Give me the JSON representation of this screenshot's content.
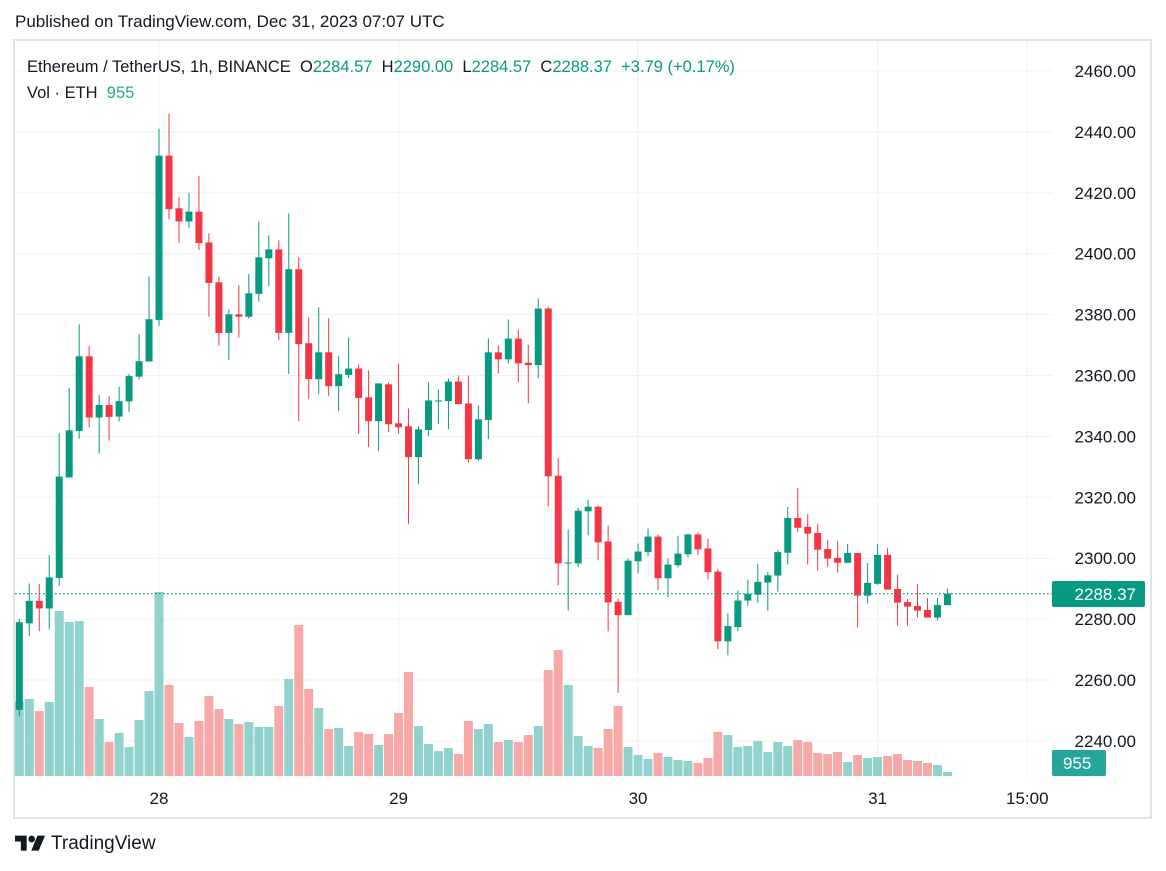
{
  "header": {
    "published": "Published on TradingView.com, Dec 31, 2023 07:07 UTC"
  },
  "legend": {
    "symbol": "Ethereum / TetherUS, 1h, BINANCE",
    "o_label": "O",
    "o_value": "2284.57",
    "h_label": "H",
    "h_value": "2290.00",
    "l_label": "L",
    "l_value": "2284.57",
    "c_label": "C",
    "c_value": "2288.37",
    "change": "+3.79 (+0.17%)",
    "vol_label": "Vol · ETH",
    "vol_value": "955"
  },
  "colors": {
    "up": "#089981",
    "down": "#f23645",
    "vol_up": "#92d2cc",
    "vol_down": "#f7a9a7",
    "last_price_tag": "#089981",
    "vol_tag": "#26a69a",
    "grid": "#f0f1f4",
    "frame": "#e0e3eb"
  },
  "footer": {
    "brand": "TradingView"
  },
  "chart_data": {
    "type": "candlestick",
    "title": "Ethereum / TetherUS, 1h, BINANCE",
    "interval": "1h",
    "ylim": [
      2229,
      2470
    ],
    "y_ticks": [
      "2460.00",
      "2440.00",
      "2420.00",
      "2400.00",
      "2380.00",
      "2360.00",
      "2340.00",
      "2320.00",
      "2300.00",
      "2280.00",
      "2260.00",
      "2240.00"
    ],
    "x_ticks": [
      {
        "label": "28",
        "index": 14
      },
      {
        "label": "29",
        "index": 38
      },
      {
        "label": "30",
        "index": 62
      },
      {
        "label": "31",
        "index": 86
      },
      {
        "label": "15:00",
        "index": 101
      }
    ],
    "last_price": "2288.37",
    "last_volume": "955",
    "grid": true,
    "columns": [
      "open",
      "high",
      "low",
      "close",
      "volume"
    ],
    "candles": [
      [
        2250.2,
        2280,
        2248,
        2279,
        17840
      ],
      [
        2278.6,
        2291.7,
        2274.5,
        2286,
        18480
      ],
      [
        2286,
        2291.5,
        2276,
        2283.5,
        15600
      ],
      [
        2283.5,
        2301,
        2276.6,
        2293.7,
        17760
      ],
      [
        2293.5,
        2341,
        2291,
        2326.8,
        39600
      ],
      [
        2326.5,
        2356,
        2326.5,
        2342,
        36960
      ],
      [
        2341.8,
        2376.8,
        2339.3,
        2366.3,
        37200
      ],
      [
        2366.3,
        2369.6,
        2343,
        2346.2,
        21360
      ],
      [
        2346.2,
        2353.6,
        2334.4,
        2350.3,
        13680
      ],
      [
        2350.3,
        2353.2,
        2338.6,
        2346.4,
        8160
      ],
      [
        2346.5,
        2356.3,
        2344.9,
        2351.6,
        10320
      ],
      [
        2351.5,
        2360.5,
        2348,
        2359.8,
        6960
      ],
      [
        2359.6,
        2373.6,
        2358.6,
        2364.7,
        13440
      ],
      [
        2364.6,
        2392.5,
        2364.6,
        2378.5,
        20400
      ],
      [
        2378.2,
        2441,
        2376.3,
        2432.2,
        44160
      ],
      [
        2432.2,
        2446,
        2411.3,
        2414.6,
        21840
      ],
      [
        2414.9,
        2418.5,
        2403.5,
        2410.6,
        12720
      ],
      [
        2410.6,
        2420,
        2408.4,
        2413.8,
        9360
      ],
      [
        2413.8,
        2425.6,
        2401.2,
        2403.5,
        13200
      ],
      [
        2403.7,
        2406.7,
        2379.3,
        2390.4,
        19200
      ],
      [
        2390.6,
        2392.5,
        2369.7,
        2374,
        16080
      ],
      [
        2374,
        2381.8,
        2365.1,
        2380.1,
        13680
      ],
      [
        2380.1,
        2389.6,
        2372.4,
        2379.3,
        12480
      ],
      [
        2379.3,
        2393.3,
        2378.6,
        2387,
        12960
      ],
      [
        2386.8,
        2410.5,
        2384.2,
        2398.8,
        11760
      ],
      [
        2398.5,
        2406,
        2389.4,
        2401.4,
        11760
      ],
      [
        2401.4,
        2404.4,
        2371.6,
        2374,
        16800
      ],
      [
        2374,
        2413.2,
        2360.5,
        2394.9,
        23280
      ],
      [
        2394.9,
        2398.8,
        2345,
        2370.3,
        36240
      ],
      [
        2370.6,
        2379.1,
        2352.3,
        2358.8,
        20880
      ],
      [
        2358.8,
        2382.4,
        2353.9,
        2367.6,
        16320
      ],
      [
        2367.6,
        2378.8,
        2353.3,
        2356.5,
        11280
      ],
      [
        2356.5,
        2366.3,
        2348.3,
        2360.4,
        11520
      ],
      [
        2360.2,
        2372.5,
        2359.2,
        2362.3,
        7200
      ],
      [
        2362.3,
        2363.7,
        2340.8,
        2352.6,
        10560
      ],
      [
        2352.8,
        2361.7,
        2336.5,
        2345,
        10080
      ],
      [
        2345,
        2357.4,
        2335.2,
        2357.4,
        7440
      ],
      [
        2357.1,
        2357.7,
        2341.4,
        2344,
        10080
      ],
      [
        2344.3,
        2363.9,
        2340.8,
        2343,
        15120
      ],
      [
        2343.3,
        2349.2,
        2311.2,
        2333.2,
        24960
      ],
      [
        2333.2,
        2343.3,
        2324.4,
        2342.3,
        12000
      ],
      [
        2342.1,
        2357.7,
        2340.1,
        2351.8,
        7680
      ],
      [
        2351.5,
        2355.4,
        2344,
        2351.8,
        6000
      ],
      [
        2351.6,
        2359,
        2342.4,
        2358,
        6720
      ],
      [
        2358,
        2360,
        2350.6,
        2350.6,
        5280
      ],
      [
        2350.8,
        2360,
        2331.3,
        2332.5,
        13200
      ],
      [
        2332.5,
        2350.2,
        2331.9,
        2345.6,
        11280
      ],
      [
        2345.4,
        2372.2,
        2339.1,
        2367.6,
        12480
      ],
      [
        2367.6,
        2369.9,
        2360.7,
        2365.3,
        8160
      ],
      [
        2365.3,
        2378.4,
        2363.9,
        2372.1,
        8640
      ],
      [
        2372.1,
        2375.1,
        2357.8,
        2364,
        8160
      ],
      [
        2364.2,
        2370.1,
        2350.9,
        2363.4,
        9840
      ],
      [
        2363.4,
        2385.3,
        2359.1,
        2382,
        12000
      ],
      [
        2382,
        2382.6,
        2317,
        2326.9,
        25440
      ],
      [
        2327.1,
        2333,
        2291.1,
        2298.3,
        30240
      ],
      [
        2298.3,
        2309.4,
        2282.9,
        2298.6,
        21840
      ],
      [
        2298.3,
        2316.5,
        2297,
        2315.6,
        9600
      ],
      [
        2315.4,
        2319.2,
        2307.5,
        2316.9,
        7200
      ],
      [
        2316.9,
        2317.3,
        2299.3,
        2305.2,
        6720
      ],
      [
        2305.5,
        2310.7,
        2276,
        2285.5,
        11280
      ],
      [
        2285.7,
        2286.7,
        2255.8,
        2281.3,
        16800
      ],
      [
        2281.3,
        2299.9,
        2281.3,
        2299.2,
        6960
      ],
      [
        2299,
        2304.8,
        2295,
        2302.2,
        5040
      ],
      [
        2302,
        2309.7,
        2300.6,
        2307.1,
        4080
      ],
      [
        2307.1,
        2307.7,
        2289.5,
        2293.4,
        5520
      ],
      [
        2293.4,
        2300,
        2287.2,
        2297.9,
        4560
      ],
      [
        2297.7,
        2307.4,
        2297,
        2301.5,
        3840
      ],
      [
        2301.3,
        2308.1,
        2300.3,
        2307.8,
        3600
      ],
      [
        2307.8,
        2308.4,
        2301,
        2302.9,
        3120
      ],
      [
        2303.2,
        2306.4,
        2293.1,
        2295.4,
        4320
      ],
      [
        2295.6,
        2296.6,
        2270.1,
        2272.7,
        10560
      ],
      [
        2272.7,
        2281.9,
        2268.1,
        2277.7,
        9840
      ],
      [
        2277.4,
        2289.4,
        2276,
        2286.1,
        6960
      ],
      [
        2286.1,
        2292.9,
        2284.4,
        2288.3,
        7200
      ],
      [
        2288,
        2298.1,
        2285.4,
        2292.2,
        8400
      ],
      [
        2292,
        2295.5,
        2282.8,
        2294.4,
        5760
      ],
      [
        2294.3,
        2302.7,
        2289,
        2302,
        8160
      ],
      [
        2301.8,
        2316.8,
        2297.9,
        2313.2,
        7200
      ],
      [
        2313.2,
        2323.1,
        2308.7,
        2310,
        8640
      ],
      [
        2310.3,
        2314.5,
        2297.9,
        2308.1,
        8160
      ],
      [
        2308.3,
        2311.2,
        2295.9,
        2302.8,
        5520
      ],
      [
        2303,
        2306,
        2297.2,
        2299.9,
        5280
      ],
      [
        2300.1,
        2305.7,
        2295.3,
        2298.5,
        5760
      ],
      [
        2298.5,
        2304.7,
        2298.5,
        2301.7,
        3360
      ],
      [
        2301.7,
        2301.7,
        2277.2,
        2287.7,
        5040
      ],
      [
        2287.7,
        2298.4,
        2285.1,
        2291.9,
        4320
      ],
      [
        2291.6,
        2304.7,
        2291.3,
        2301.1,
        4560
      ],
      [
        2301.1,
        2303.4,
        2289.7,
        2289.7,
        4800
      ],
      [
        2289.9,
        2294.5,
        2277.9,
        2285.4,
        5280
      ],
      [
        2285.6,
        2286.6,
        2277.9,
        2284.1,
        3840
      ],
      [
        2284.3,
        2291.5,
        2280.5,
        2282.8,
        3600
      ],
      [
        2283,
        2286.9,
        2280.5,
        2280.5,
        3120
      ],
      [
        2280.5,
        2286.9,
        2279.5,
        2284.6,
        2640
      ],
      [
        2284.57,
        2290,
        2284.57,
        2288.37,
        955
      ]
    ]
  }
}
